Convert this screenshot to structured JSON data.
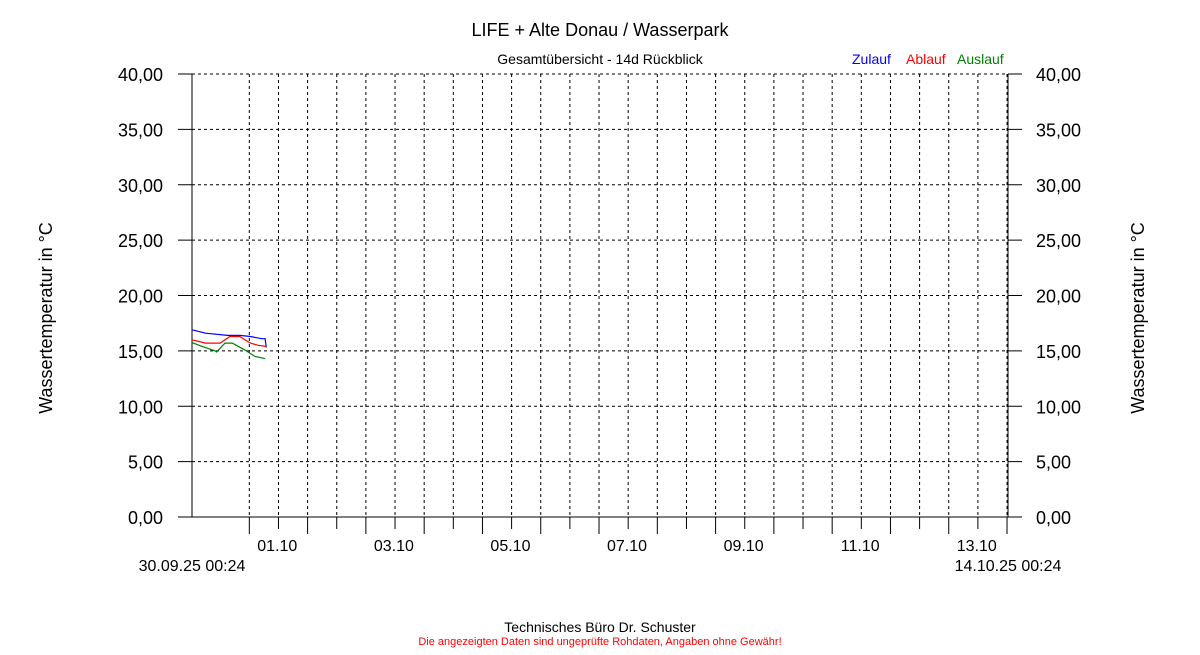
{
  "chart_data": {
    "type": "line",
    "title": "LIFE + Alte Donau / Wasserpark",
    "subtitle": "Gesamtübersicht - 14d Rückblick",
    "ylabel": "Wassertemperatur in °C",
    "ylabel_right": "Wassertemperatur in °C",
    "ylim": [
      0,
      40
    ],
    "yticks": [
      "0,00",
      "5,00",
      "10,00",
      "15,00",
      "20,00",
      "25,00",
      "30,00",
      "35,00",
      "40,00"
    ],
    "xlim": [
      "30.09.25 00:24",
      "14.10.25 00:24"
    ],
    "xtick_labels": [
      {
        "date": "01.10.25 00:00",
        "label": "01.10"
      },
      {
        "date": "03.10.25 00:00",
        "label": "03.10"
      },
      {
        "date": "05.10.25 00:00",
        "label": "05.10"
      },
      {
        "date": "07.10.25 00:00",
        "label": "07.10"
      },
      {
        "date": "09.10.25 00:00",
        "label": "09.10"
      },
      {
        "date": "11.10.25 00:00",
        "label": "11.10"
      },
      {
        "date": "13.10.25 00:00",
        "label": "13.10"
      }
    ],
    "x_start_label": "30.09.25 00:24",
    "x_end_label": "14.10.25 00:24",
    "grid": true,
    "legend_placement": "top-right",
    "series": [
      {
        "name": "Zulauf",
        "color": "#0000ff",
        "points": [
          [
            "30.09.25 00:24",
            16.9
          ],
          [
            "30.09.25 06:00",
            16.6
          ],
          [
            "30.09.25 15:00",
            16.4
          ],
          [
            "30.09.25 20:00",
            16.4
          ],
          [
            "01.10.25 00:30",
            16.3
          ],
          [
            "01.10.25 05:00",
            16.1
          ],
          [
            "01.10.25 06:30",
            16.1
          ],
          [
            "01.10.25 07:00",
            15.3
          ]
        ]
      },
      {
        "name": "Ablauf",
        "color": "#ff0000",
        "points": [
          [
            "30.09.25 00:24",
            16.0
          ],
          [
            "30.09.25 06:00",
            15.7
          ],
          [
            "30.09.25 12:00",
            15.7
          ],
          [
            "30.09.25 14:00",
            16.0
          ],
          [
            "30.09.25 16:00",
            16.3
          ],
          [
            "30.09.25 20:00",
            16.3
          ],
          [
            "01.10.25 00:24",
            15.7
          ],
          [
            "01.10.25 03:40",
            15.5
          ],
          [
            "01.10.25 07:00",
            15.4
          ]
        ]
      },
      {
        "name": "Auslauf",
        "color": "#008000",
        "points": [
          [
            "30.09.25 00:24",
            15.75
          ],
          [
            "30.09.25 04:00",
            15.45
          ],
          [
            "30.09.25 10:00",
            15.0
          ],
          [
            "30.09.25 10:30",
            14.9
          ],
          [
            "30.09.25 14:00",
            15.7
          ],
          [
            "30.09.25 17:00",
            15.7
          ],
          [
            "30.09.25 22:00",
            15.1
          ],
          [
            "01.10.25 02:20",
            14.5
          ],
          [
            "01.10.25 06:30",
            14.3
          ]
        ]
      }
    ]
  },
  "footer": {
    "company": "Technisches Büro Dr. Schuster",
    "disclaimer": "Die angezeigten Daten sind ungeprüfte Rohdaten, Angaben ohne Gewähr!"
  }
}
